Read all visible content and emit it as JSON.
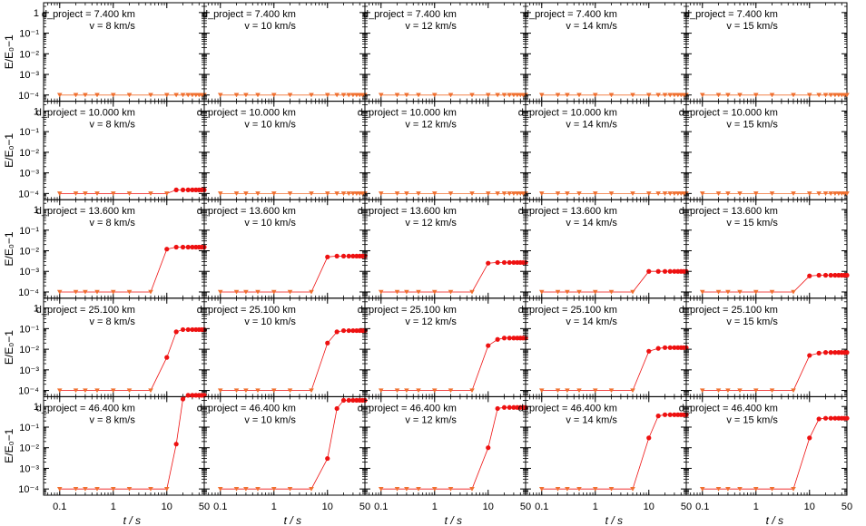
{
  "figure": {
    "ylabel": "E/E₀−1",
    "xlabel": "t / s",
    "x_ticks": [
      "0.1",
      "1",
      "10",
      "50"
    ],
    "y_ticks": [
      "1",
      "10⁻¹",
      "10⁻²",
      "10⁻³",
      "10⁻⁴"
    ]
  },
  "colors": {
    "triangle_series": "#f07030",
    "dot_series": "#ee1111",
    "frame": "#000000"
  },
  "chart_data": {
    "type": "line",
    "layout": "grid of 5 rows (d_project) × 5 columns (v)",
    "x_scale": "log",
    "y_scale": "log",
    "xlim": [
      0.05,
      50
    ],
    "ylim": [
      5e-05,
      3
    ],
    "x": [
      0.1,
      0.2,
      0.3,
      0.5,
      1,
      2,
      5,
      10,
      15,
      20,
      25,
      30,
      35,
      40,
      45,
      50
    ],
    "row_labels": [
      "d_project = 7.400 km",
      "d_project = 10.000 km",
      "d_project = 13.600 km",
      "d_project = 25.100 km",
      "d_project = 46.400 km"
    ],
    "col_labels": [
      "v = 8 km/s",
      "v = 10 km/s",
      "v = 12 km/s",
      "v = 14 km/s",
      "v = 15 km/s"
    ],
    "panels": [
      [
        {
          "d": "7.400",
          "v": "8",
          "y": [
            0.0001,
            0.0001,
            0.0001,
            0.0001,
            0.0001,
            0.0001,
            0.0001,
            0.0001,
            0.0001,
            0.0001,
            0.0001,
            0.0001,
            0.0001,
            0.0001,
            0.0001,
            0.0001
          ]
        },
        {
          "d": "7.400",
          "v": "10",
          "y": [
            0.0001,
            0.0001,
            0.0001,
            0.0001,
            0.0001,
            0.0001,
            0.0001,
            0.0001,
            0.0001,
            0.0001,
            0.0001,
            0.0001,
            0.0001,
            0.0001,
            0.0001,
            0.0001
          ]
        },
        {
          "d": "7.400",
          "v": "12",
          "y": [
            0.0001,
            0.0001,
            0.0001,
            0.0001,
            0.0001,
            0.0001,
            0.0001,
            0.0001,
            0.0001,
            0.0001,
            0.0001,
            0.0001,
            0.0001,
            0.0001,
            0.0001,
            0.0001
          ]
        },
        {
          "d": "7.400",
          "v": "14",
          "y": [
            0.0001,
            0.0001,
            0.0001,
            0.0001,
            0.0001,
            0.0001,
            0.0001,
            0.0001,
            0.0001,
            0.0001,
            0.0001,
            0.0001,
            0.0001,
            0.0001,
            0.0001,
            0.0001
          ]
        },
        {
          "d": "7.400",
          "v": "15",
          "y": [
            0.0001,
            0.0001,
            0.0001,
            0.0001,
            0.0001,
            0.0001,
            0.0001,
            0.0001,
            0.0001,
            0.0001,
            0.0001,
            0.0001,
            0.0001,
            0.0001,
            0.0001,
            0.0001
          ]
        }
      ],
      [
        {
          "d": "10.000",
          "v": "8",
          "y": [
            0.0001,
            0.0001,
            0.0001,
            0.0001,
            0.0001,
            0.0001,
            0.0001,
            0.0001,
            0.00015,
            0.00015,
            0.00015,
            0.00015,
            0.00015,
            0.00015,
            0.00015,
            0.00015
          ]
        },
        {
          "d": "10.000",
          "v": "10",
          "y": [
            0.0001,
            0.0001,
            0.0001,
            0.0001,
            0.0001,
            0.0001,
            0.0001,
            0.0001,
            0.0001,
            0.0001,
            0.0001,
            0.0001,
            0.0001,
            0.0001,
            0.0001,
            0.0001
          ]
        },
        {
          "d": "10.000",
          "v": "12",
          "y": [
            0.0001,
            0.0001,
            0.0001,
            0.0001,
            0.0001,
            0.0001,
            0.0001,
            0.0001,
            0.0001,
            0.0001,
            0.0001,
            0.0001,
            0.0001,
            0.0001,
            0.0001,
            0.0001
          ]
        },
        {
          "d": "10.000",
          "v": "14",
          "y": [
            0.0001,
            0.0001,
            0.0001,
            0.0001,
            0.0001,
            0.0001,
            0.0001,
            0.0001,
            0.0001,
            0.0001,
            0.0001,
            0.0001,
            0.0001,
            0.0001,
            0.0001,
            0.0001
          ]
        },
        {
          "d": "10.000",
          "v": "15",
          "y": [
            0.0001,
            0.0001,
            0.0001,
            0.0001,
            0.0001,
            0.0001,
            0.0001,
            0.0001,
            0.0001,
            0.0001,
            0.0001,
            0.0001,
            0.0001,
            0.0001,
            0.0001,
            0.0001
          ]
        }
      ],
      [
        {
          "d": "13.600",
          "v": "8",
          "y": [
            0.0001,
            0.0001,
            0.0001,
            0.0001,
            0.0001,
            0.0001,
            0.0001,
            0.012,
            0.015,
            0.015,
            0.015,
            0.015,
            0.015,
            0.015,
            0.015,
            0.015
          ]
        },
        {
          "d": "13.600",
          "v": "10",
          "y": [
            0.0001,
            0.0001,
            0.0001,
            0.0001,
            0.0001,
            0.0001,
            0.0001,
            0.005,
            0.0055,
            0.0055,
            0.0055,
            0.0055,
            0.0055,
            0.0055,
            0.0055,
            0.0055
          ]
        },
        {
          "d": "13.600",
          "v": "12",
          "y": [
            0.0001,
            0.0001,
            0.0001,
            0.0001,
            0.0001,
            0.0001,
            0.0001,
            0.0025,
            0.0027,
            0.0027,
            0.0027,
            0.0027,
            0.0027,
            0.0027,
            0.0027,
            0.0027
          ]
        },
        {
          "d": "13.600",
          "v": "14",
          "y": [
            0.0001,
            0.0001,
            0.0001,
            0.0001,
            0.0001,
            0.0001,
            0.0001,
            0.001,
            0.001,
            0.001,
            0.001,
            0.001,
            0.001,
            0.001,
            0.001,
            0.001
          ]
        },
        {
          "d": "13.600",
          "v": "15",
          "y": [
            0.0001,
            0.0001,
            0.0001,
            0.0001,
            0.0001,
            0.0001,
            0.0001,
            0.0006,
            0.00065,
            0.00065,
            0.00065,
            0.00065,
            0.00065,
            0.00065,
            0.00065,
            0.00065
          ]
        }
      ],
      [
        {
          "d": "25.100",
          "v": "8",
          "y": [
            0.0001,
            0.0001,
            0.0001,
            0.0001,
            0.0001,
            0.0001,
            0.0001,
            0.004,
            0.07,
            0.09,
            0.09,
            0.09,
            0.09,
            0.09,
            0.09,
            0.09
          ]
        },
        {
          "d": "25.100",
          "v": "10",
          "y": [
            0.0001,
            0.0001,
            0.0001,
            0.0001,
            0.0001,
            0.0001,
            0.0001,
            0.02,
            0.07,
            0.08,
            0.08,
            0.08,
            0.08,
            0.08,
            0.08,
            0.08
          ]
        },
        {
          "d": "25.100",
          "v": "12",
          "y": [
            0.0001,
            0.0001,
            0.0001,
            0.0001,
            0.0001,
            0.0001,
            0.0001,
            0.015,
            0.03,
            0.035,
            0.035,
            0.035,
            0.035,
            0.035,
            0.035,
            0.035
          ]
        },
        {
          "d": "25.100",
          "v": "14",
          "y": [
            0.0001,
            0.0001,
            0.0001,
            0.0001,
            0.0001,
            0.0001,
            0.0001,
            0.008,
            0.011,
            0.012,
            0.012,
            0.012,
            0.012,
            0.012,
            0.012,
            0.012
          ]
        },
        {
          "d": "25.100",
          "v": "15",
          "y": [
            0.0001,
            0.0001,
            0.0001,
            0.0001,
            0.0001,
            0.0001,
            0.0001,
            0.005,
            0.0065,
            0.007,
            0.007,
            0.007,
            0.007,
            0.007,
            0.007,
            0.007
          ]
        }
      ],
      [
        {
          "d": "46.400",
          "v": "8",
          "y": [
            0.0001,
            0.0001,
            0.0001,
            0.0001,
            0.0001,
            0.0001,
            0.0001,
            0.0001,
            0.015,
            2.3,
            3.5,
            3.5,
            3.5,
            3.5,
            3.5,
            3.5
          ]
        },
        {
          "d": "46.400",
          "v": "10",
          "y": [
            0.0001,
            0.0001,
            0.0001,
            0.0001,
            0.0001,
            0.0001,
            0.0001,
            0.003,
            0.8,
            2.0,
            2.0,
            2.0,
            2.0,
            2.0,
            2.0,
            2.0
          ]
        },
        {
          "d": "46.400",
          "v": "12",
          "y": [
            0.0001,
            0.0001,
            0.0001,
            0.0001,
            0.0001,
            0.0001,
            0.0001,
            0.01,
            0.8,
            0.9,
            0.9,
            0.9,
            0.9,
            0.9,
            0.9,
            0.9
          ]
        },
        {
          "d": "46.400",
          "v": "14",
          "y": [
            0.0001,
            0.0001,
            0.0001,
            0.0001,
            0.0001,
            0.0001,
            0.0001,
            0.03,
            0.35,
            0.4,
            0.4,
            0.4,
            0.4,
            0.4,
            0.4,
            0.4
          ]
        },
        {
          "d": "46.400",
          "v": "15",
          "y": [
            0.0001,
            0.0001,
            0.0001,
            0.0001,
            0.0001,
            0.0001,
            0.0001,
            0.03,
            0.25,
            0.27,
            0.27,
            0.27,
            0.27,
            0.27,
            0.27,
            0.27
          ]
        }
      ]
    ]
  }
}
